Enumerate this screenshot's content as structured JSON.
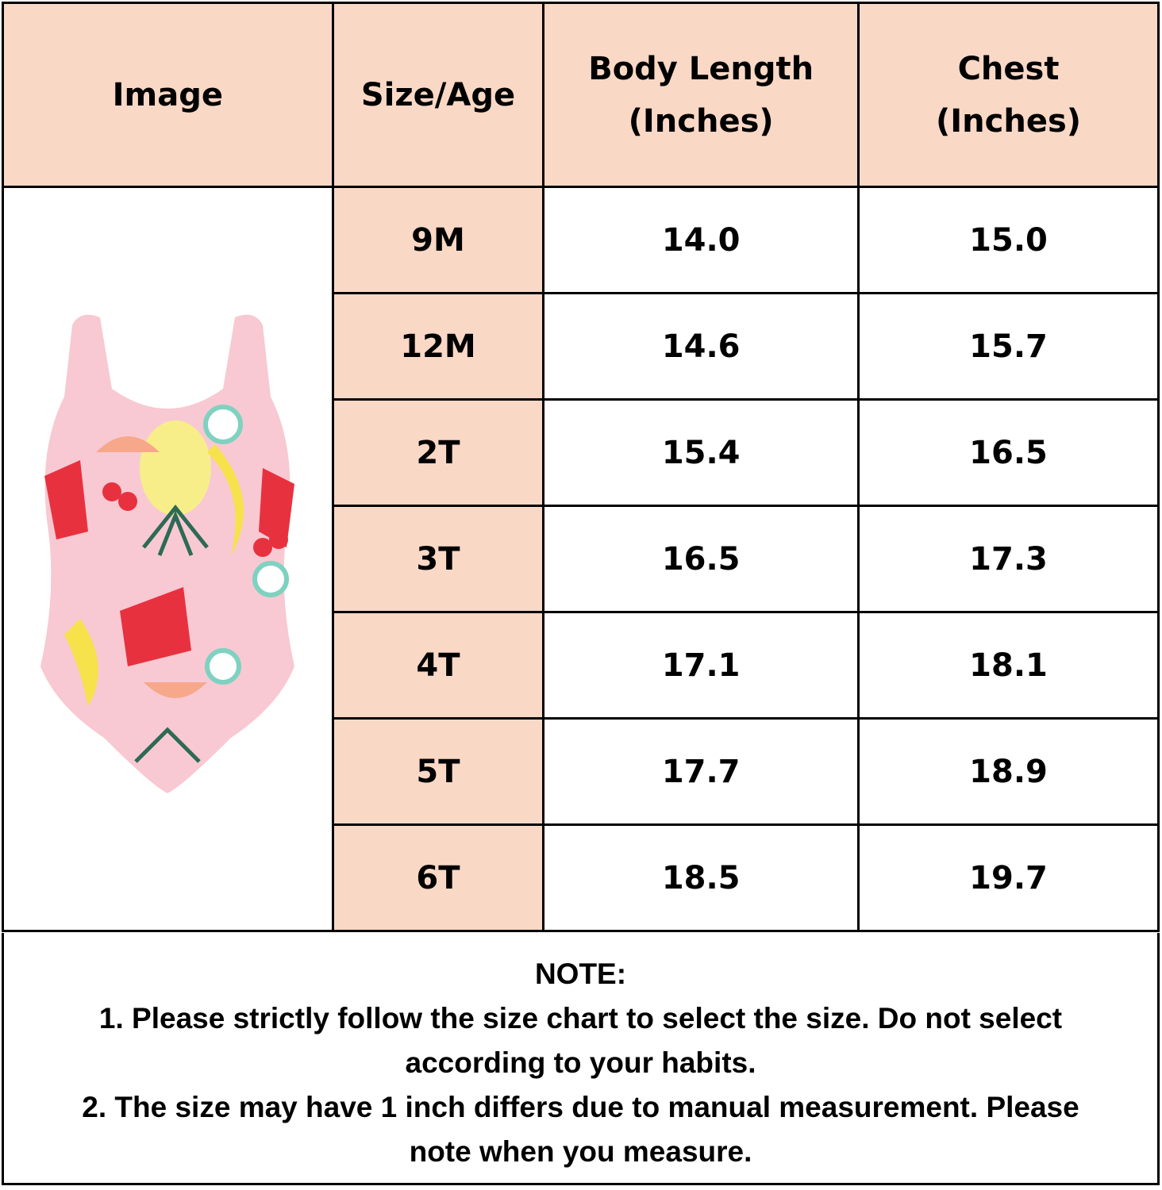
{
  "header": {
    "image": "Image",
    "size_age": "Size/Age",
    "body_length": [
      "Body Length",
      "(Inches)"
    ],
    "chest": [
      "Chest",
      "(Inches)"
    ]
  },
  "rows": [
    {
      "size": "9M",
      "body_length": "14.0",
      "chest": "15.0"
    },
    {
      "size": "12M",
      "body_length": "14.6",
      "chest": "15.7"
    },
    {
      "size": "2T",
      "body_length": "15.4",
      "chest": "16.5"
    },
    {
      "size": "3T",
      "body_length": "16.5",
      "chest": "17.3"
    },
    {
      "size": "4T",
      "body_length": "17.1",
      "chest": "18.1"
    },
    {
      "size": "5T",
      "body_length": "17.7",
      "chest": "18.9"
    },
    {
      "size": "6T",
      "body_length": "18.5",
      "chest": "19.7"
    }
  ],
  "product_image": "fruit-print-swimsuit",
  "note": {
    "title": "NOTE:",
    "lines": [
      "1. Please strictly follow the size chart to select the size. Do not select",
      "according to your habits.",
      "2. The size may have 1 inch differs due to manual measurement. Please",
      "note when you measure."
    ]
  },
  "colors": {
    "header_bg": "#f9d8c6",
    "border": "#000000"
  }
}
